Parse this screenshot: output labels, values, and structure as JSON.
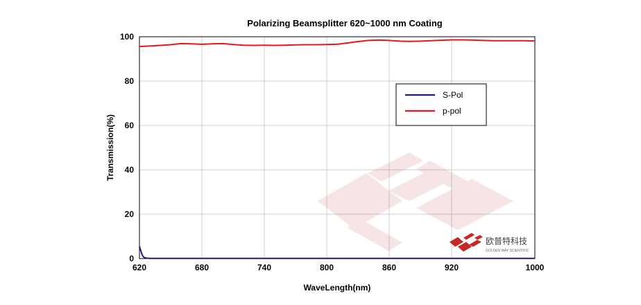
{
  "chart_data": {
    "type": "line",
    "title": "Polarizing Beamsplitter 620~1000 nm Coating",
    "xlabel": "WaveLength(nm)",
    "ylabel": "Transmission(%)",
    "xlim": [
      620,
      1000
    ],
    "ylim": [
      0,
      100
    ],
    "xticks": [
      620,
      680,
      740,
      800,
      860,
      920,
      1000
    ],
    "yticks": [
      0,
      20,
      40,
      60,
      80,
      100
    ],
    "grid": true,
    "legend_position": "upper-right-inside",
    "series": [
      {
        "name": "S-Pol",
        "color": "#1a1a80",
        "x": [
          620,
          621,
          622,
          623,
          624,
          625,
          627,
          630,
          640,
          660,
          700,
          760,
          820,
          880,
          940,
          1000
        ],
        "y": [
          5.5,
          4.0,
          2.5,
          1.3,
          0.7,
          0.4,
          0.2,
          0.1,
          0.1,
          0.1,
          0.1,
          0.1,
          0.1,
          0.1,
          0.1,
          0.1
        ]
      },
      {
        "name": "p-pol",
        "color": "#e8161c",
        "x": [
          620,
          630,
          640,
          650,
          660,
          670,
          680,
          690,
          700,
          710,
          720,
          730,
          740,
          750,
          760,
          770,
          780,
          790,
          800,
          810,
          820,
          830,
          840,
          850,
          860,
          870,
          880,
          890,
          900,
          910,
          920,
          930,
          940,
          950,
          960,
          970,
          980,
          990,
          1000
        ],
        "y": [
          95.6,
          95.8,
          96.1,
          96.4,
          96.9,
          96.8,
          96.6,
          96.8,
          96.9,
          96.5,
          96.2,
          96.1,
          96.2,
          96.1,
          96.2,
          96.3,
          96.4,
          96.4,
          96.5,
          96.6,
          97.2,
          97.8,
          98.3,
          98.5,
          98.3,
          98.0,
          97.9,
          98.0,
          98.2,
          98.4,
          98.6,
          98.6,
          98.5,
          98.3,
          98.2,
          98.2,
          98.2,
          98.2,
          98.1
        ]
      }
    ]
  },
  "watermark": {
    "company_cn": "欧普特科技",
    "company_en": "GOLDEN WAY SCIENTIFIC",
    "accent": "#c62828"
  }
}
